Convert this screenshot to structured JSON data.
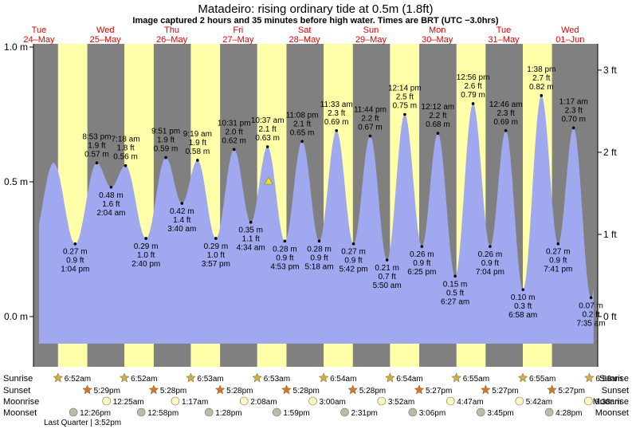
{
  "header": {
    "title": "Matadeiro: rising  ordinary tide at 0.5m (1.8ft)",
    "subtitle": "Image captured 2 hours and 35 minutes before high water. Times are BRT (UTC −3.0hrs)"
  },
  "days": [
    {
      "name": "Tue",
      "date": "24–May"
    },
    {
      "name": "Wed",
      "date": "25–May"
    },
    {
      "name": "Thu",
      "date": "26–May"
    },
    {
      "name": "Fri",
      "date": "27–May"
    },
    {
      "name": "Sat",
      "date": "28–May"
    },
    {
      "name": "Sun",
      "date": "29–May"
    },
    {
      "name": "Mon",
      "date": "30–May"
    },
    {
      "name": "Tue",
      "date": "31–May"
    },
    {
      "name": "Wed",
      "date": "01–Jun"
    }
  ],
  "chart_data": {
    "type": "area",
    "ylabel_left_ticks": [
      "1.0 m",
      "0.5 m",
      "0.0 m"
    ],
    "ylabel_right_ticks": [
      "3 ft",
      "2 ft",
      "1 ft",
      "0 ft"
    ],
    "ylim_m": [
      -0.1,
      1.0
    ],
    "x_start_hour": -2,
    "x_end_hour": 202,
    "current_level": {
      "hour": 83,
      "m": 0.5
    },
    "points": [
      {
        "hour": 13.07,
        "m": 0.27,
        "type": "low",
        "m_label": "0.27 m",
        "ft_label": "0.9 ft",
        "time": "1:04 pm"
      },
      {
        "hour": 20.88,
        "m": 0.57,
        "type": "high",
        "time": "8:53 pm",
        "ft_label": "1.9 ft",
        "m_label": "0.57 m"
      },
      {
        "hour": 26.07,
        "m": 0.48,
        "type": "low",
        "m_label": "0.48 m",
        "ft_label": "1.6 ft",
        "time": "2:04 am"
      },
      {
        "hour": 31.3,
        "m": 0.56,
        "type": "high",
        "time": "7:18 am",
        "ft_label": "1.8 ft",
        "m_label": "0.56 m"
      },
      {
        "hour": 38.67,
        "m": 0.29,
        "type": "low",
        "m_label": "0.29 m",
        "ft_label": "1.0 ft",
        "time": "2:40 pm"
      },
      {
        "hour": 45.85,
        "m": 0.59,
        "type": "high",
        "time": "9:51 pm",
        "ft_label": "1.9 ft",
        "m_label": "0.59 m"
      },
      {
        "hour": 51.67,
        "m": 0.42,
        "type": "low",
        "m_label": "0.42 m",
        "ft_label": "1.4 ft",
        "time": "3:40 am"
      },
      {
        "hour": 57.32,
        "m": 0.58,
        "type": "high",
        "time": "9:19 am",
        "ft_label": "1.9 ft",
        "m_label": "0.58 m"
      },
      {
        "hour": 63.95,
        "m": 0.29,
        "type": "low",
        "m_label": "0.29 m",
        "ft_label": "1.0 ft",
        "time": "3:57 pm"
      },
      {
        "hour": 70.52,
        "m": 0.62,
        "type": "high",
        "time": "10:31 pm",
        "ft_label": "2.0 ft",
        "m_label": "0.62 m"
      },
      {
        "hour": 76.57,
        "m": 0.35,
        "type": "low",
        "m_label": "0.35 m",
        "ft_label": "1.1 ft",
        "time": "4:34 am"
      },
      {
        "hour": 82.62,
        "m": 0.63,
        "type": "high",
        "time": "10:37 am",
        "ft_label": "2.1 ft",
        "m_label": "0.63 m"
      },
      {
        "hour": 88.88,
        "m": 0.28,
        "type": "low",
        "m_label": "0.28 m",
        "ft_label": "0.9 ft",
        "time": "4:53 pm"
      },
      {
        "hour": 95.13,
        "m": 0.65,
        "type": "high",
        "time": "11:08 pm",
        "ft_label": "2.1 ft",
        "m_label": "0.65 m"
      },
      {
        "hour": 101.3,
        "m": 0.28,
        "type": "low",
        "m_label": "0.28 m",
        "ft_label": "0.9 ft",
        "time": "5:18 am"
      },
      {
        "hour": 107.55,
        "m": 0.69,
        "type": "high",
        "time": "11:33 am",
        "ft_label": "2.3 ft",
        "m_label": "0.69 m"
      },
      {
        "hour": 113.7,
        "m": 0.27,
        "type": "low",
        "m_label": "0.27 m",
        "ft_label": "0.9 ft",
        "time": "5:42 pm"
      },
      {
        "hour": 119.73,
        "m": 0.67,
        "type": "high",
        "time": "11:44 pm",
        "ft_label": "2.2 ft",
        "m_label": "0.67 m"
      },
      {
        "hour": 125.83,
        "m": 0.21,
        "type": "low",
        "m_label": "0.21 m",
        "ft_label": "0.7 ft",
        "time": "5:50 am"
      },
      {
        "hour": 132.23,
        "m": 0.75,
        "type": "high",
        "time": "12:14 pm",
        "ft_label": "2.5 ft",
        "m_label": "0.75 m"
      },
      {
        "hour": 138.42,
        "m": 0.26,
        "type": "low",
        "m_label": "0.26 m",
        "ft_label": "0.9 ft",
        "time": "6:25 pm"
      },
      {
        "hour": 144.2,
        "m": 0.68,
        "type": "high",
        "time": "12:12 am",
        "ft_label": "2.2 ft",
        "m_label": "0.68 m"
      },
      {
        "hour": 150.45,
        "m": 0.15,
        "type": "low",
        "m_label": "0.15 m",
        "ft_label": "0.5 ft",
        "time": "6:27 am"
      },
      {
        "hour": 156.93,
        "m": 0.79,
        "type": "high",
        "time": "12:56 pm",
        "ft_label": "2.6 ft",
        "m_label": "0.79 m"
      },
      {
        "hour": 163.07,
        "m": 0.26,
        "type": "low",
        "m_label": "0.26 m",
        "ft_label": "0.9 ft",
        "time": "7:04 pm"
      },
      {
        "hour": 168.77,
        "m": 0.69,
        "type": "high",
        "time": "12:46 am",
        "ft_label": "2.3 ft",
        "m_label": "0.69 m"
      },
      {
        "hour": 174.97,
        "m": 0.1,
        "type": "low",
        "m_label": "0.10 m",
        "ft_label": "0.3 ft",
        "time": "6:58 am"
      },
      {
        "hour": 181.63,
        "m": 0.82,
        "type": "high",
        "time": "1:38 pm",
        "ft_label": "2.7 ft",
        "m_label": "0.82 m"
      },
      {
        "hour": 187.68,
        "m": 0.27,
        "type": "low",
        "m_label": "0.27 m",
        "ft_label": "0.9 ft",
        "time": "7:41 pm"
      },
      {
        "hour": 193.28,
        "m": 0.7,
        "type": "high",
        "time": "1:17 am",
        "ft_label": "2.3 ft",
        "m_label": "0.70 m"
      },
      {
        "hour": 199.58,
        "m": 0.07,
        "type": "low",
        "m_label": "0.07 m",
        "ft_label": "0.2 ft",
        "time": "7:35 am"
      }
    ]
  },
  "astro": {
    "labels": {
      "sunrise": "Sunrise",
      "sunset": "Sunset",
      "moonrise": "Moonrise",
      "moonset": "Moonset"
    },
    "sunrise": [
      {
        "hour": 6.87,
        "time": "6:52am"
      },
      {
        "hour": 30.87,
        "time": "6:52am"
      },
      {
        "hour": 54.88,
        "time": "6:53am"
      },
      {
        "hour": 78.88,
        "time": "6:53am"
      },
      {
        "hour": 102.9,
        "time": "6:54am"
      },
      {
        "hour": 126.9,
        "time": "6:54am"
      },
      {
        "hour": 150.92,
        "time": "6:55am"
      },
      {
        "hour": 174.92,
        "time": "6:55am"
      },
      {
        "hour": 198.93,
        "time": "6:56am"
      }
    ],
    "sunset": [
      {
        "hour": 17.48,
        "time": "5:29pm"
      },
      {
        "hour": 41.47,
        "time": "5:28pm"
      },
      {
        "hour": 65.47,
        "time": "5:28pm"
      },
      {
        "hour": 89.47,
        "time": "5:28pm"
      },
      {
        "hour": 113.47,
        "time": "5:28pm"
      },
      {
        "hour": 137.45,
        "time": "5:27pm"
      },
      {
        "hour": 161.45,
        "time": "5:27pm"
      },
      {
        "hour": 185.45,
        "time": "5:27pm"
      }
    ],
    "moonrise": [
      {
        "hour": 24.42,
        "time": "12:25am"
      },
      {
        "hour": 49.28,
        "time": "1:17am"
      },
      {
        "hour": 74.13,
        "time": "2:08am"
      },
      {
        "hour": 99.0,
        "time": "3:00am"
      },
      {
        "hour": 123.87,
        "time": "3:52am"
      },
      {
        "hour": 148.78,
        "time": "4:47am"
      },
      {
        "hour": 173.7,
        "time": "5:42am"
      },
      {
        "hour": 198.63,
        "time": "6:38am"
      }
    ],
    "moonset": [
      {
        "hour": 12.43,
        "time": "12:26pm"
      },
      {
        "hour": 36.97,
        "time": "12:58pm"
      },
      {
        "hour": 61.47,
        "time": "1:28pm"
      },
      {
        "hour": 85.98,
        "time": "1:59pm"
      },
      {
        "hour": 110.52,
        "time": "2:31pm"
      },
      {
        "hour": 135.1,
        "time": "3:06pm"
      },
      {
        "hour": 159.75,
        "time": "3:45pm"
      },
      {
        "hour": 184.47,
        "time": "4:28pm"
      }
    ],
    "moon_phase": {
      "label": "Last Quarter",
      "time": "3:52pm"
    }
  },
  "colors": {
    "day": "#ffffaa",
    "night": "#808080",
    "water": "#a0a8f0",
    "day_text": "#dd0000",
    "sun_star": "#c8b050",
    "sunset_star": "#d07830",
    "moonrise": "#fff8c0",
    "moonset": "#b8bca8",
    "marker": "#f0e020"
  }
}
